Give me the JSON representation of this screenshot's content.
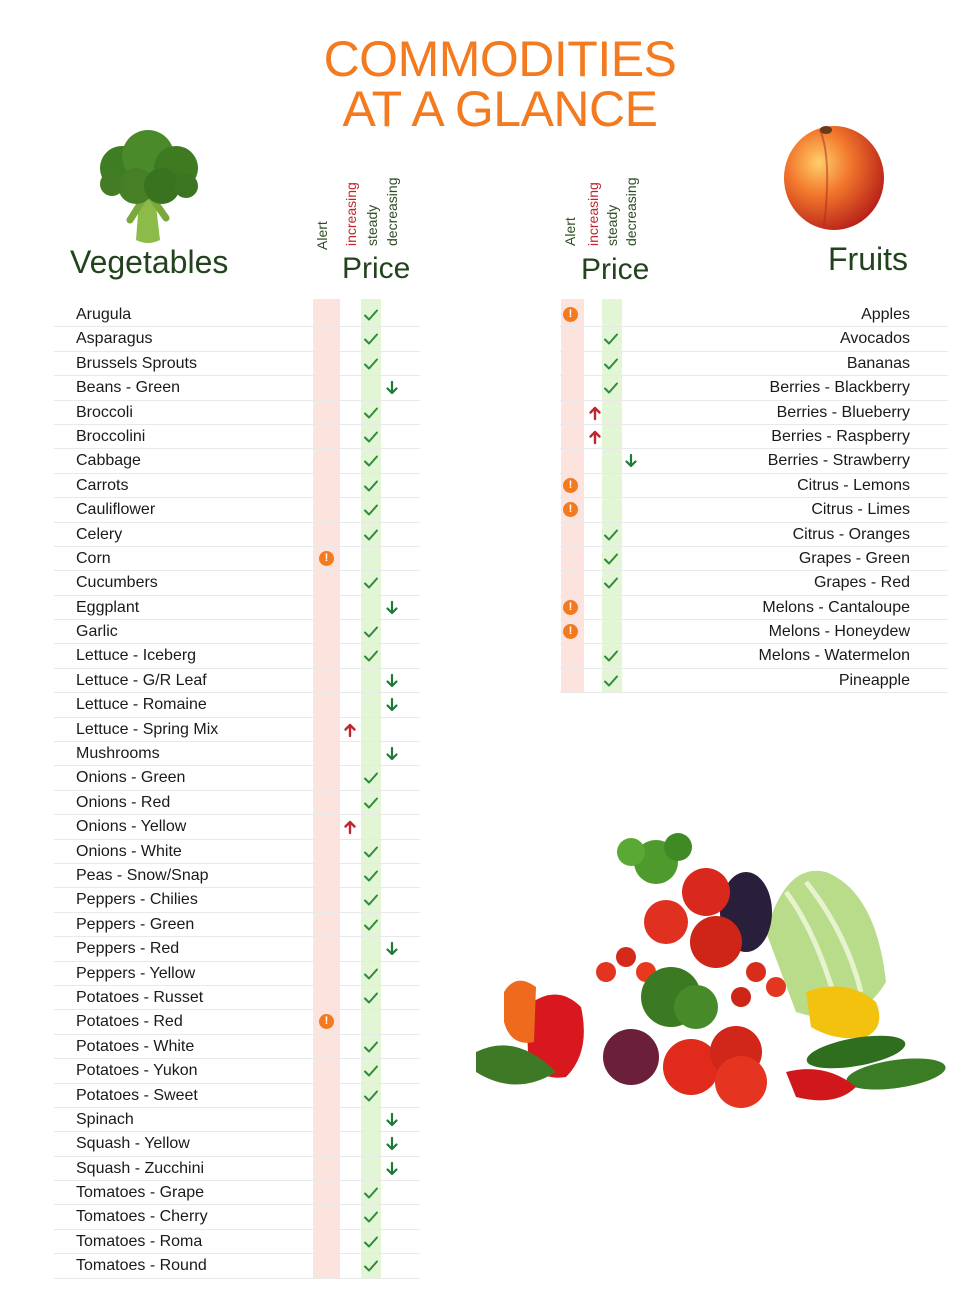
{
  "title_line1": "COMMODITIES",
  "title_line2": "AT A GLANCE",
  "vegetables_heading": "Vegetables",
  "fruits_heading": "Fruits",
  "price_label": "Price",
  "column_labels": {
    "alert": "Alert",
    "increasing": "increasing",
    "steady": "steady",
    "decreasing": "decreasing"
  },
  "colors": {
    "title": "#f47a20",
    "heading": "#23431f",
    "alert": "#f47a20",
    "up": "#c0262d",
    "steady": "#2f8a3c",
    "down": "#1f7a3a"
  },
  "vegetables": [
    {
      "name": "Arugula",
      "status": "steady"
    },
    {
      "name": "Asparagus",
      "status": "steady"
    },
    {
      "name": "Brussels Sprouts",
      "status": "steady"
    },
    {
      "name": "Beans - Green",
      "status": "decreasing"
    },
    {
      "name": "Broccoli",
      "status": "steady"
    },
    {
      "name": "Broccolini",
      "status": "steady"
    },
    {
      "name": "Cabbage",
      "status": "steady"
    },
    {
      "name": "Carrots",
      "status": "steady"
    },
    {
      "name": "Cauliflower",
      "status": "steady"
    },
    {
      "name": "Celery",
      "status": "steady"
    },
    {
      "name": "Corn",
      "status": "alert"
    },
    {
      "name": "Cucumbers",
      "status": "steady"
    },
    {
      "name": "Eggplant",
      "status": "decreasing"
    },
    {
      "name": "Garlic",
      "status": "steady"
    },
    {
      "name": "Lettuce - Iceberg",
      "status": "steady"
    },
    {
      "name": "Lettuce - G/R Leaf",
      "status": "decreasing"
    },
    {
      "name": "Lettuce - Romaine",
      "status": "decreasing"
    },
    {
      "name": "Lettuce - Spring Mix",
      "status": "increasing"
    },
    {
      "name": "Mushrooms",
      "status": "decreasing"
    },
    {
      "name": "Onions - Green",
      "status": "steady"
    },
    {
      "name": "Onions - Red",
      "status": "steady"
    },
    {
      "name": "Onions - Yellow",
      "status": "increasing"
    },
    {
      "name": "Onions - White",
      "status": "steady"
    },
    {
      "name": "Peas - Snow/Snap",
      "status": "steady"
    },
    {
      "name": "Peppers - Chilies",
      "status": "steady"
    },
    {
      "name": "Peppers - Green",
      "status": "steady"
    },
    {
      "name": "Peppers - Red",
      "status": "decreasing"
    },
    {
      "name": "Peppers - Yellow",
      "status": "steady"
    },
    {
      "name": "Potatoes - Russet",
      "status": "steady"
    },
    {
      "name": "Potatoes - Red",
      "status": "alert"
    },
    {
      "name": "Potatoes - White",
      "status": "steady"
    },
    {
      "name": "Potatoes - Yukon",
      "status": "steady"
    },
    {
      "name": "Potatoes - Sweet",
      "status": "steady"
    },
    {
      "name": "Spinach",
      "status": "decreasing"
    },
    {
      "name": "Squash - Yellow",
      "status": "decreasing"
    },
    {
      "name": "Squash - Zucchini",
      "status": "decreasing"
    },
    {
      "name": "Tomatoes - Grape",
      "status": "steady"
    },
    {
      "name": "Tomatoes - Cherry",
      "status": "steady"
    },
    {
      "name": "Tomatoes - Roma",
      "status": "steady"
    },
    {
      "name": "Tomatoes - Round",
      "status": "steady"
    }
  ],
  "fruits": [
    {
      "name": "Apples",
      "status": "alert"
    },
    {
      "name": "Avocados",
      "status": "steady"
    },
    {
      "name": "Bananas",
      "status": "steady"
    },
    {
      "name": "Berries - Blackberry",
      "status": "steady"
    },
    {
      "name": "Berries - Blueberry",
      "status": "increasing"
    },
    {
      "name": "Berries - Raspberry",
      "status": "increasing"
    },
    {
      "name": "Berries - Strawberry",
      "status": "decreasing"
    },
    {
      "name": "Citrus - Lemons",
      "status": "alert"
    },
    {
      "name": "Citrus - Limes",
      "status": "alert"
    },
    {
      "name": "Citrus - Oranges",
      "status": "steady"
    },
    {
      "name": "Grapes - Green",
      "status": "steady"
    },
    {
      "name": "Grapes - Red",
      "status": "steady"
    },
    {
      "name": "Melons - Cantaloupe",
      "status": "alert"
    },
    {
      "name": "Melons - Honeydew",
      "status": "alert"
    },
    {
      "name": "Melons - Watermelon",
      "status": "steady"
    },
    {
      "name": "Pineapple",
      "status": "steady"
    }
  ],
  "icons": {
    "broccoli": "broccoli-image",
    "peach": "peach-image",
    "produce": "produce-pile-image"
  }
}
